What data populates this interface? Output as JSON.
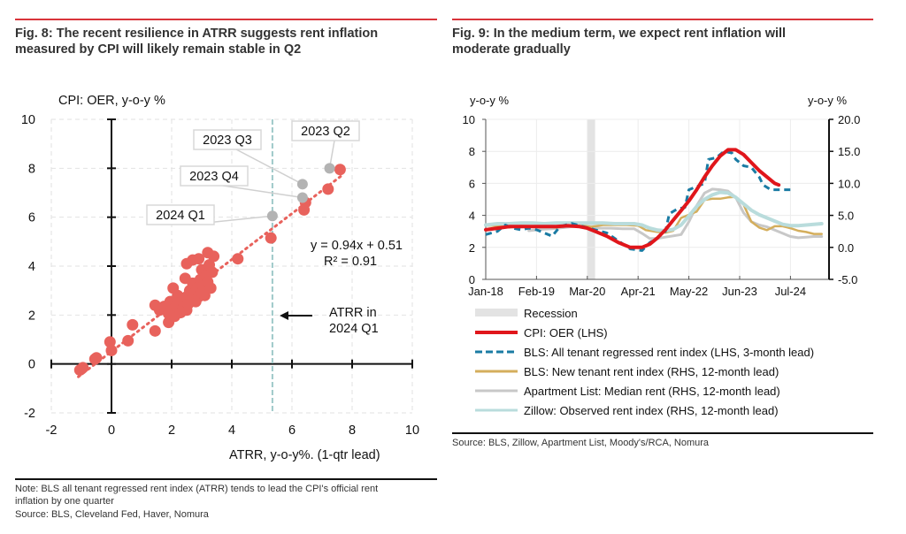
{
  "left": {
    "title_line1": "Fig. 8: The recent resilience in ATRR suggests rent inflation",
    "title_line2": "measured by CPI will likely remain stable in Q2",
    "note_line1": "Note: BLS all tenant regressed rent index (ATRR) tends to lead the CPI's official rent",
    "note_line2": "inflation by one quarter",
    "source": "Source: BLS, Cleveland Fed, Haver, Nomura"
  },
  "right": {
    "title_line1": "Fig. 9: In the medium term, we expect rent inflation will",
    "title_line2": "moderate gradually",
    "source": "Source: BLS, Zillow, Apartment List, Moody's/RCA, Nomura"
  },
  "chart_data": [
    {
      "type": "scatter",
      "ylabel": "CPI: OER, y-o-y %",
      "xlabel": "ATRR, y-o-y%.  (1-qtr lead)",
      "xlim": [
        -2,
        10
      ],
      "ylim": [
        -2,
        10
      ],
      "xticks": [
        "-2",
        "0",
        "2",
        "4",
        "6",
        "8",
        "10"
      ],
      "yticks": [
        "-2",
        "0",
        "2",
        "4",
        "6",
        "8",
        "10"
      ],
      "grid": true,
      "color": "#e8625c",
      "highlight_color": "#b3b3b3",
      "trendline": {
        "slope": 0.94,
        "intercept": 0.51,
        "label": "y = 0.94x + 0.51",
        "r2_label": "R² = 0.91"
      },
      "reference_line": {
        "x": 5.35,
        "color": "#9ec9c9",
        "label_line1": "ATRR in",
        "label_line2": "2024 Q1"
      },
      "points": [
        [
          -1.05,
          -0.25
        ],
        [
          -0.95,
          -0.15
        ],
        [
          -0.55,
          0.2
        ],
        [
          -0.5,
          0.25
        ],
        [
          -0.05,
          0.9
        ],
        [
          0.0,
          0.55
        ],
        [
          0.55,
          0.95
        ],
        [
          0.7,
          1.6
        ],
        [
          1.45,
          1.35
        ],
        [
          1.45,
          2.4
        ],
        [
          1.6,
          2.2
        ],
        [
          1.75,
          2.35
        ],
        [
          1.9,
          1.7
        ],
        [
          1.9,
          2.05
        ],
        [
          1.95,
          2.55
        ],
        [
          2.0,
          2.2
        ],
        [
          2.05,
          3.1
        ],
        [
          2.1,
          1.95
        ],
        [
          2.15,
          2.35
        ],
        [
          2.2,
          2.8
        ],
        [
          2.25,
          2.5
        ],
        [
          2.3,
          2.1
        ],
        [
          2.35,
          2.6
        ],
        [
          2.4,
          2.3
        ],
        [
          2.45,
          3.5
        ],
        [
          2.5,
          2.75
        ],
        [
          2.5,
          2.2
        ],
        [
          2.55,
          2.45
        ],
        [
          2.6,
          3.0
        ],
        [
          2.65,
          2.6
        ],
        [
          2.7,
          3.3
        ],
        [
          2.75,
          2.9
        ],
        [
          2.8,
          2.55
        ],
        [
          2.85,
          3.1
        ],
        [
          2.9,
          2.75
        ],
        [
          2.95,
          3.45
        ],
        [
          3.0,
          2.9
        ],
        [
          3.0,
          3.85
        ],
        [
          3.05,
          3.2
        ],
        [
          3.1,
          2.8
        ],
        [
          3.15,
          3.6
        ],
        [
          3.2,
          3.35
        ],
        [
          3.25,
          4.05
        ],
        [
          3.3,
          3.1
        ],
        [
          3.35,
          3.75
        ],
        [
          3.4,
          4.4
        ],
        [
          2.5,
          4.1
        ],
        [
          2.7,
          4.25
        ],
        [
          3.2,
          4.55
        ],
        [
          2.9,
          4.3
        ],
        [
          4.2,
          4.3
        ],
        [
          5.3,
          5.15
        ],
        [
          6.4,
          6.3
        ],
        [
          6.45,
          6.6
        ],
        [
          7.2,
          7.15
        ],
        [
          7.6,
          7.95
        ]
      ],
      "annotations": [
        {
          "label": "2023 Q2",
          "x": 7.25,
          "y": 8.0
        },
        {
          "label": "2023 Q3",
          "x": 6.35,
          "y": 7.35
        },
        {
          "label": "2023 Q4",
          "x": 6.35,
          "y": 6.8
        },
        {
          "label": "2024 Q1",
          "x": 5.35,
          "y": 6.05
        }
      ]
    },
    {
      "type": "line",
      "ylabel_left": "y-o-y %",
      "ylabel_right": "y-o-y %",
      "ylim_left": [
        0,
        10
      ],
      "ylim_right": [
        -5,
        20
      ],
      "yticks_left": [
        "0",
        "2",
        "4",
        "6",
        "8",
        "10"
      ],
      "yticks_right": [
        "-5.0",
        "0.0",
        "5.0",
        "10.0",
        "15.0",
        "20.0"
      ],
      "x_start": "Jan-18",
      "xticks": [
        "Jan-18",
        "Feb-19",
        "Mar-20",
        "Apr-21",
        "May-22",
        "Jun-23",
        "Jul-24"
      ],
      "months_per_xtick": 13,
      "x_unit": "months since Jan-18",
      "grid": true,
      "recession": {
        "label": "Recession",
        "start": 26,
        "end": 28,
        "color": "#e3e3e3"
      },
      "series": [
        {
          "name": "CPI: OER (LHS)",
          "axis": "left",
          "color": "#e0161b",
          "style": "solid",
          "points": [
            [
              0,
              3.1
            ],
            [
              3,
              3.2
            ],
            [
              6,
              3.3
            ],
            [
              9,
              3.3
            ],
            [
              12,
              3.3
            ],
            [
              15,
              3.3
            ],
            [
              18,
              3.3
            ],
            [
              21,
              3.35
            ],
            [
              24,
              3.3
            ],
            [
              26,
              3.2
            ],
            [
              28,
              3.0
            ],
            [
              31,
              2.7
            ],
            [
              34,
              2.3
            ],
            [
              37,
              2.0
            ],
            [
              40,
              2.0
            ],
            [
              42,
              2.2
            ],
            [
              44,
              2.6
            ],
            [
              46,
              3.1
            ],
            [
              48,
              3.7
            ],
            [
              50,
              4.3
            ],
            [
              52,
              4.9
            ],
            [
              54,
              5.6
            ],
            [
              56,
              6.4
            ],
            [
              58,
              7.1
            ],
            [
              60,
              7.7
            ],
            [
              62,
              8.1
            ],
            [
              64,
              8.1
            ],
            [
              66,
              7.8
            ],
            [
              68,
              7.3
            ],
            [
              70,
              6.8
            ],
            [
              72,
              6.4
            ],
            [
              74,
              6.0
            ],
            [
              75,
              5.9
            ]
          ]
        },
        {
          "name": "BLS: All tenant regressed rent index (LHS, 3-month lead)",
          "axis": "left",
          "color": "#1a7ba3",
          "style": "dashed",
          "points": [
            [
              0,
              2.8
            ],
            [
              3,
              3.0
            ],
            [
              5,
              3.4
            ],
            [
              7,
              3.2
            ],
            [
              9,
              3.1
            ],
            [
              11,
              3.2
            ],
            [
              13,
              3.1
            ],
            [
              15,
              2.9
            ],
            [
              17,
              2.7
            ],
            [
              19,
              3.3
            ],
            [
              22,
              3.5
            ],
            [
              25,
              3.3
            ],
            [
              28,
              3.1
            ],
            [
              31,
              2.9
            ],
            [
              34,
              2.4
            ],
            [
              37,
              1.9
            ],
            [
              40,
              1.8
            ],
            [
              42,
              2.3
            ],
            [
              44,
              2.6
            ],
            [
              46,
              3.0
            ],
            [
              47,
              4.1
            ],
            [
              49,
              4.4
            ],
            [
              51,
              4.5
            ],
            [
              52,
              5.6
            ],
            [
              54,
              5.8
            ],
            [
              56,
              6.0
            ],
            [
              57,
              7.5
            ],
            [
              59,
              7.6
            ],
            [
              61,
              8.0
            ],
            [
              63,
              7.9
            ],
            [
              64,
              7.5
            ],
            [
              66,
              7.1
            ],
            [
              68,
              7.0
            ],
            [
              70,
              6.4
            ],
            [
              71,
              5.9
            ],
            [
              73,
              5.6
            ],
            [
              75,
              5.6
            ],
            [
              78,
              5.6
            ]
          ]
        },
        {
          "name": "BLS: New tenant rent index (RHS, 12-month lead)",
          "axis": "right",
          "color": "#d4ae5c",
          "style": "solid",
          "points": [
            [
              0,
              3.4
            ],
            [
              3,
              3.4
            ],
            [
              6,
              3.1
            ],
            [
              9,
              3.4
            ],
            [
              12,
              3.3
            ],
            [
              15,
              3.3
            ],
            [
              18,
              3.1
            ],
            [
              21,
              3.4
            ],
            [
              24,
              3.5
            ],
            [
              27,
              3.2
            ],
            [
              30,
              3.5
            ],
            [
              33,
              3.5
            ],
            [
              36,
              3.5
            ],
            [
              39,
              3.4
            ],
            [
              41,
              2.7
            ],
            [
              44,
              2.4
            ],
            [
              46,
              2.3
            ],
            [
              48,
              2.6
            ],
            [
              50,
              4.6
            ],
            [
              52,
              5.1
            ],
            [
              54,
              5.6
            ],
            [
              56,
              7.4
            ],
            [
              58,
              7.6
            ],
            [
              60,
              7.6
            ],
            [
              62,
              7.8
            ],
            [
              64,
              7.9
            ],
            [
              66,
              6.7
            ],
            [
              68,
              4.0
            ],
            [
              70,
              3.1
            ],
            [
              72,
              2.7
            ],
            [
              74,
              3.3
            ],
            [
              76,
              3.3
            ],
            [
              78,
              3.0
            ],
            [
              80,
              2.6
            ],
            [
              82,
              2.4
            ],
            [
              84,
              2.1
            ],
            [
              86,
              2.1
            ]
          ]
        },
        {
          "name": "Apartment List: Median rent (RHS, 12-month lead)",
          "axis": "right",
          "color": "#c8c8c8",
          "style": "solid",
          "points": [
            [
              11,
              2.6
            ],
            [
              14,
              2.8
            ],
            [
              17,
              2.9
            ],
            [
              20,
              3.1
            ],
            [
              23,
              3.3
            ],
            [
              26,
              3.2
            ],
            [
              29,
              3.0
            ],
            [
              32,
              3.0
            ],
            [
              35,
              2.9
            ],
            [
              38,
              2.9
            ],
            [
              40,
              2.2
            ],
            [
              42,
              1.4
            ],
            [
              44,
              1.4
            ],
            [
              46,
              1.6
            ],
            [
              48,
              1.8
            ],
            [
              50,
              2.0
            ],
            [
              52,
              4.0
            ],
            [
              54,
              6.5
            ],
            [
              56,
              8.5
            ],
            [
              58,
              9.1
            ],
            [
              60,
              9.0
            ],
            [
              62,
              8.8
            ],
            [
              64,
              7.8
            ],
            [
              66,
              5.4
            ],
            [
              68,
              4.0
            ],
            [
              70,
              3.5
            ],
            [
              72,
              3.2
            ],
            [
              74,
              2.7
            ],
            [
              76,
              2.2
            ],
            [
              78,
              1.7
            ],
            [
              80,
              1.5
            ],
            [
              82,
              1.6
            ],
            [
              84,
              1.7
            ],
            [
              86,
              1.7
            ]
          ]
        },
        {
          "name": "Zillow: Observed rent index (RHS, 12-month lead)",
          "axis": "right",
          "color": "#b9dcdc",
          "style": "solid",
          "points": [
            [
              0,
              3.5
            ],
            [
              3,
              3.7
            ],
            [
              6,
              3.7
            ],
            [
              9,
              3.8
            ],
            [
              12,
              3.8
            ],
            [
              15,
              3.7
            ],
            [
              18,
              3.8
            ],
            [
              21,
              3.8
            ],
            [
              24,
              3.8
            ],
            [
              27,
              3.8
            ],
            [
              30,
              3.8
            ],
            [
              33,
              3.7
            ],
            [
              36,
              3.7
            ],
            [
              38,
              3.7
            ],
            [
              40,
              3.5
            ],
            [
              42,
              3.0
            ],
            [
              44,
              2.7
            ],
            [
              46,
              2.6
            ],
            [
              48,
              2.8
            ],
            [
              50,
              3.5
            ],
            [
              52,
              4.9
            ],
            [
              54,
              6.4
            ],
            [
              56,
              7.5
            ],
            [
              58,
              8.2
            ],
            [
              60,
              8.6
            ],
            [
              62,
              8.5
            ],
            [
              64,
              7.8
            ],
            [
              66,
              6.8
            ],
            [
              68,
              5.8
            ],
            [
              70,
              5.1
            ],
            [
              72,
              4.6
            ],
            [
              74,
              4.1
            ],
            [
              76,
              3.6
            ],
            [
              78,
              3.4
            ],
            [
              80,
              3.4
            ],
            [
              82,
              3.5
            ],
            [
              84,
              3.6
            ],
            [
              86,
              3.7
            ]
          ]
        }
      ]
    }
  ]
}
